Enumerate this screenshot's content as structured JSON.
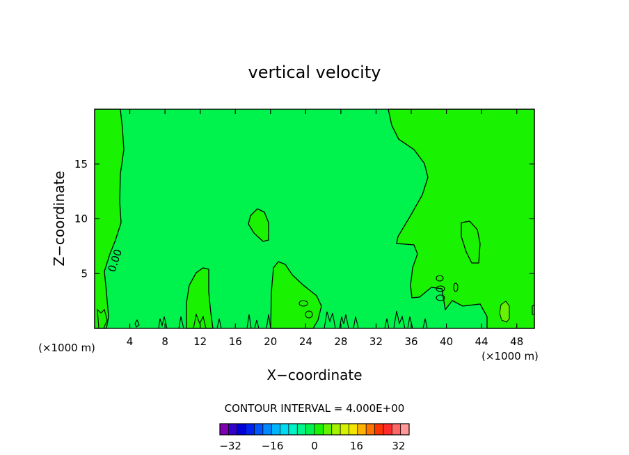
{
  "chart_data": {
    "type": "heatmap",
    "title": "vertical velocity",
    "xlabel": "X−coordinate",
    "ylabel": "Z−coordinate",
    "x_unit": "(×1000 m)",
    "xlim": [
      0,
      50
    ],
    "ylim": [
      0,
      20
    ],
    "x_ticks": [
      4,
      8,
      12,
      16,
      20,
      24,
      28,
      32,
      36,
      40,
      44,
      48
    ],
    "y_ticks": [
      5,
      10,
      15
    ],
    "contour_label": "0.00",
    "contour_interval_text": "CONTOUR INTERVAL = 4.000E+00",
    "colorbar": {
      "ticks": [
        -32,
        -16,
        0,
        16,
        32
      ],
      "tick_labels": [
        "−32",
        "−16",
        "0",
        "16",
        "32"
      ],
      "min": -36,
      "max": 36,
      "step": 4,
      "colors": [
        "#7f00b3",
        "#3300cc",
        "#0000d6",
        "#0022f0",
        "#0055ff",
        "#0088ff",
        "#00b3ff",
        "#00d9f2",
        "#00f0c8",
        "#00f58a",
        "#00f24d",
        "#19f200",
        "#66f200",
        "#a3f200",
        "#d6f200",
        "#f2e600",
        "#ffb300",
        "#ff7300",
        "#ff3300",
        "#ff2a2a",
        "#ff6666",
        "#ff9999"
      ]
    },
    "regions": [
      {
        "level": "0 to 4",
        "color": "#19f200"
      },
      {
        "level": "-4 to 0",
        "color": "#00f24d"
      },
      {
        "level": "4 to 8",
        "color": "#66f200"
      }
    ]
  }
}
